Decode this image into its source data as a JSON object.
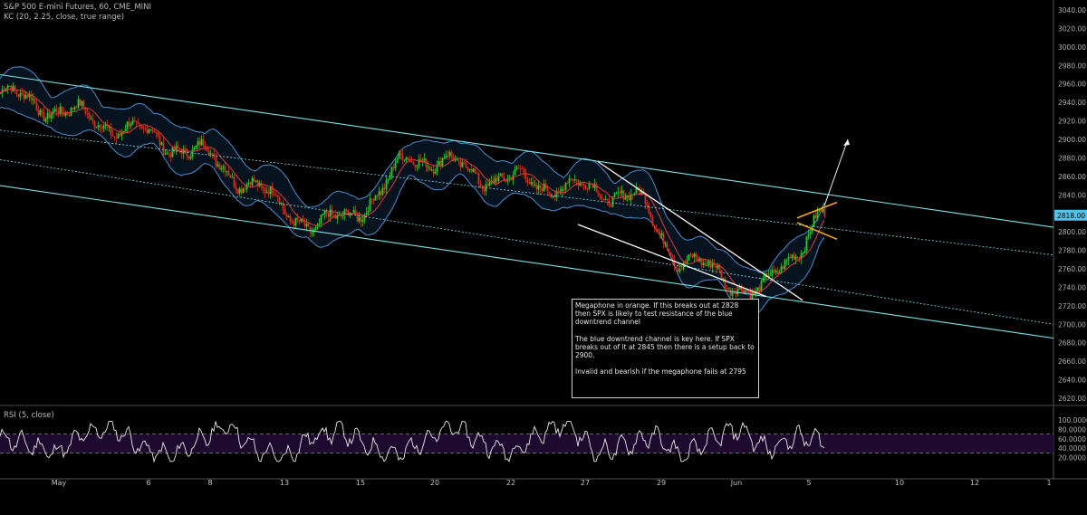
{
  "header": {
    "symbol_line": "S&P 500 E-mini Futures, 60, CME_MINI",
    "indicator_line": "KC (20, 2.25, close, true range)"
  },
  "rsi": {
    "label": "RSI (5, close)"
  },
  "annotation": {
    "lines": [
      "Megaphone in orange. If this breaks out at 2828 then SPX is likely to test resistance of the blue downtrend channel",
      "The blue downtrend channel is key here. If SPX breaks out of it at 2845 then there is a setup back to 2900.",
      "Invalid and bearish if the megaphone fails at 2795"
    ]
  },
  "colors": {
    "background": "#000000",
    "bull": "#36c13a",
    "bear": "#c0392b",
    "keltner_band": "#4a8fd0",
    "keltner_mid": "#e03b3b",
    "channel": "#7fe0e8",
    "megaphone": "#f5a623",
    "wedge": "#ffffff",
    "rsi_line": "#e8e8e8",
    "rsi_fill": "#1d0a2e",
    "price_tag": "#4fc3e8"
  },
  "chart_data": [
    {
      "type": "candlestick",
      "title": "S&P 500 E-mini Futures, 60, CME_MINI",
      "indicator": "KC (20, 2.25, close, true range)",
      "x_tick_labels": [
        "May",
        "6",
        "8",
        "13",
        "15",
        "20",
        "22",
        "27",
        "29",
        "Jun",
        "5",
        "10",
        "12",
        "1"
      ],
      "y_tick_labels": [
        "3040.00",
        "3020.00",
        "3000.00",
        "2980.00",
        "2960.00",
        "2940.00",
        "2920.00",
        "2900.00",
        "2880.00",
        "2860.00",
        "2840.00",
        "2820.00",
        "2800.00",
        "2780.00",
        "2760.00",
        "2740.00",
        "2720.00",
        "2700.00",
        "2680.00",
        "2660.00",
        "2640.00",
        "2620.00"
      ],
      "ylim": [
        2610,
        3045
      ],
      "last_price_label": "2818.00",
      "close_path_waypoints": {
        "x_category_index": [
          0,
          1,
          2,
          3,
          4,
          5,
          6,
          7,
          8,
          9,
          10
        ],
        "note": "approximate hourly closes between dated ticks",
        "values": [
          2950,
          2905,
          2880,
          2802,
          2840,
          2885,
          2858,
          2840,
          2775,
          2732,
          2818
        ]
      },
      "overlays": [
        {
          "name": "blue downtrend channel upper",
          "from": 2970,
          "to": 2805
        },
        {
          "name": "blue downtrend channel lower",
          "from": 2850,
          "to": 2685
        },
        {
          "name": "channel midline upper",
          "from": 2910,
          "to": 2775
        },
        {
          "name": "channel midline lower",
          "from": 2878,
          "to": 2700
        },
        {
          "name": "megaphone upper",
          "from": 2815,
          "to": 2832
        },
        {
          "name": "megaphone lower",
          "from": 2810,
          "to": 2792
        },
        {
          "name": "projection target",
          "value": 2900
        }
      ]
    },
    {
      "type": "line",
      "title": "RSI (5, close)",
      "y_tick_labels": [
        "100.0000",
        "80.0000",
        "60.0000",
        "40.0000",
        "20.0000"
      ],
      "ylim": [
        0,
        100
      ],
      "levels": [
        70,
        30
      ],
      "sample_values": [
        62,
        48,
        30,
        71,
        85,
        40,
        22,
        55,
        90,
        35,
        18,
        66,
        78,
        42,
        25,
        60,
        88,
        50,
        30,
        72,
        94,
        28,
        45,
        68,
        20,
        58,
        82,
        37,
        64,
        55
      ]
    }
  ]
}
